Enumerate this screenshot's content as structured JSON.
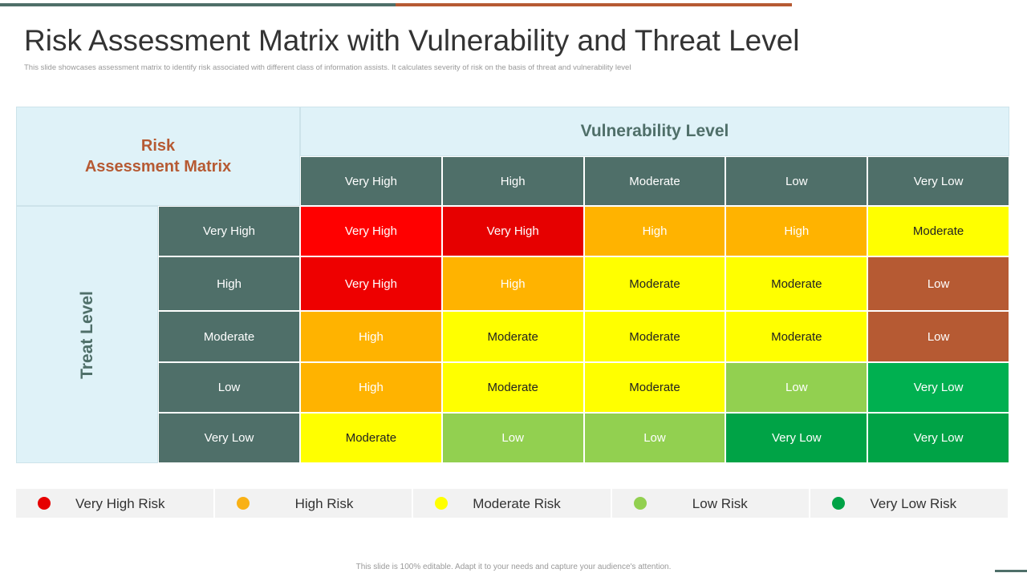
{
  "header": {
    "title": "Risk Assessment Matrix with Vulnerability and Threat Level",
    "subtitle": "This slide showcases assessment matrix to identify risk associated with different class of information assists. It calculates severity of risk on the basis of threat and vulnerability level"
  },
  "table": {
    "corner_title": [
      "Risk",
      "Assessment Matrix"
    ],
    "column_header": "Vulnerability Level",
    "columns": [
      "Very High",
      "High",
      "Moderate",
      "Low",
      "Very Low"
    ],
    "row_header": "Treat Level",
    "rows": [
      {
        "label": "Very High",
        "cells": [
          {
            "text": "Very High",
            "color": "#ff0000"
          },
          {
            "text": "Very High",
            "color": "#e60000"
          },
          {
            "text": "High",
            "color": "#ffb300"
          },
          {
            "text": "High",
            "color": "#ffb300"
          },
          {
            "text": "Moderate",
            "color": "#ffff00"
          }
        ]
      },
      {
        "label": "High",
        "cells": [
          {
            "text": "Very High",
            "color": "#ee0000"
          },
          {
            "text": "High",
            "color": "#ffb300"
          },
          {
            "text": "Moderate",
            "color": "#ffff00"
          },
          {
            "text": "Moderate",
            "color": "#ffff00"
          },
          {
            "text": "Low",
            "color": "#b65a33"
          }
        ]
      },
      {
        "label": "Moderate",
        "cells": [
          {
            "text": "High",
            "color": "#ffb300"
          },
          {
            "text": "Moderate",
            "color": "#ffff00"
          },
          {
            "text": "Moderate",
            "color": "#ffff00"
          },
          {
            "text": "Moderate",
            "color": "#ffff00"
          },
          {
            "text": "Low",
            "color": "#b65a33"
          }
        ]
      },
      {
        "label": "Low",
        "cells": [
          {
            "text": "High",
            "color": "#ffb300"
          },
          {
            "text": "Moderate",
            "color": "#ffff00"
          },
          {
            "text": "Moderate",
            "color": "#ffff00"
          },
          {
            "text": "Low",
            "color": "#92d050"
          },
          {
            "text": "Very Low",
            "color": "#00b050"
          }
        ]
      },
      {
        "label": "Very Low",
        "cells": [
          {
            "text": "Moderate",
            "color": "#ffff00"
          },
          {
            "text": "Low",
            "color": "#92d050"
          },
          {
            "text": "Low",
            "color": "#92d050"
          },
          {
            "text": "Very Low",
            "color": "#00a346"
          },
          {
            "text": "Very Low",
            "color": "#00a346"
          }
        ]
      }
    ]
  },
  "legend": [
    {
      "label": "Very High Risk",
      "color": "#e60000"
    },
    {
      "label": "High Risk",
      "color": "#f9b115"
    },
    {
      "label": "Moderate Risk",
      "color": "#ffff00"
    },
    {
      "label": "Low Risk",
      "color": "#92d050"
    },
    {
      "label": "Very Low Risk",
      "color": "#00a346"
    }
  ],
  "footer": "This slide is 100% editable. Adapt it to your needs and capture your audience's attention."
}
